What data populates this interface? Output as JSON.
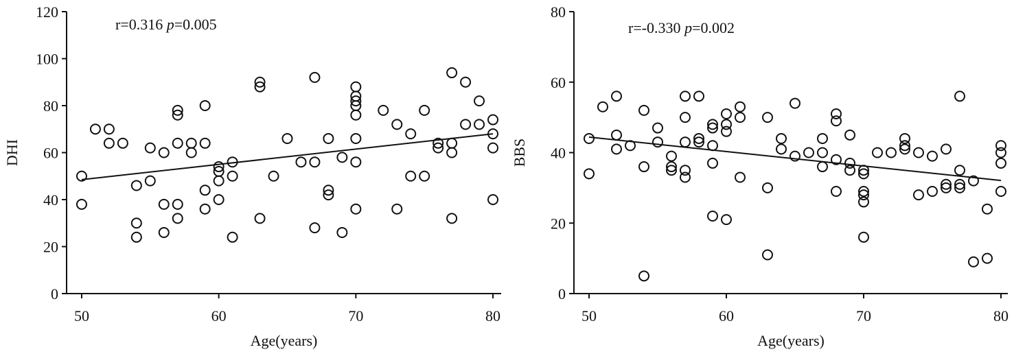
{
  "chart_data": [
    {
      "type": "scatter",
      "xlabel": "Age(years)",
      "ylabel": "DHI",
      "annotation": [
        "r=0.316 ",
        "p",
        "=0.005"
      ],
      "xlim": [
        48.9,
        80.6
      ],
      "ylim": [
        0,
        120
      ],
      "xticks": [
        50,
        60,
        70,
        80
      ],
      "yticks": [
        0,
        20,
        40,
        60,
        80,
        100,
        120
      ],
      "x": [
        50,
        50,
        51,
        52,
        52,
        53,
        54,
        54,
        54,
        55,
        55,
        56,
        56,
        56,
        57,
        57,
        57,
        57,
        57,
        58,
        58,
        59,
        59,
        59,
        59,
        60,
        60,
        60,
        60,
        61,
        61,
        61,
        63,
        63,
        63,
        64,
        65,
        66,
        67,
        67,
        67,
        68,
        68,
        68,
        69,
        69,
        70,
        70,
        70,
        70,
        70,
        70,
        70,
        70,
        72,
        73,
        73,
        74,
        74,
        75,
        75,
        76,
        76,
        77,
        77,
        77,
        77,
        78,
        78,
        79,
        79,
        80,
        80,
        80,
        80
      ],
      "values": [
        50,
        38,
        70,
        70,
        64,
        64,
        46,
        30,
        24,
        62,
        48,
        60,
        38,
        26,
        78,
        76,
        64,
        38,
        32,
        64,
        60,
        80,
        64,
        44,
        36,
        54,
        52,
        48,
        40,
        56,
        50,
        24,
        90,
        88,
        32,
        50,
        66,
        56,
        92,
        56,
        28,
        66,
        44,
        42,
        58,
        26,
        88,
        84,
        82,
        80,
        76,
        66,
        56,
        36,
        78,
        72,
        36,
        68,
        50,
        78,
        50,
        64,
        62,
        94,
        64,
        60,
        32,
        90,
        72,
        82,
        72,
        74,
        68,
        62,
        40
      ],
      "trend": {
        "x": [
          50,
          80
        ],
        "y": [
          48.5,
          68
        ]
      }
    },
    {
      "type": "scatter",
      "xlabel": "Age(years)",
      "ylabel": "BBS",
      "annotation": [
        "r=-0.330 ",
        "p",
        "=0.002"
      ],
      "xlim": [
        48.9,
        80.5
      ],
      "ylim": [
        0,
        80
      ],
      "xticks": [
        50,
        60,
        70,
        80
      ],
      "yticks": [
        0,
        20,
        40,
        60,
        80
      ],
      "x": [
        50,
        50,
        51,
        52,
        52,
        52,
        53,
        54,
        54,
        54,
        55,
        55,
        56,
        56,
        56,
        57,
        57,
        57,
        57,
        57,
        58,
        58,
        58,
        59,
        59,
        59,
        59,
        59,
        60,
        60,
        60,
        60,
        61,
        61,
        61,
        63,
        63,
        63,
        64,
        64,
        65,
        65,
        66,
        67,
        67,
        67,
        68,
        68,
        68,
        68,
        69,
        69,
        69,
        70,
        70,
        70,
        70,
        70,
        70,
        71,
        72,
        73,
        73,
        73,
        74,
        74,
        75,
        75,
        76,
        76,
        76,
        77,
        77,
        77,
        77,
        78,
        78,
        79,
        79,
        80,
        80,
        80,
        80
      ],
      "values": [
        44,
        34,
        53,
        56,
        45,
        41,
        42,
        52,
        36,
        5,
        47,
        43,
        39,
        36,
        35,
        56,
        50,
        43,
        35,
        33,
        56,
        44,
        43,
        48,
        47,
        42,
        37,
        22,
        51,
        48,
        46,
        21,
        53,
        50,
        33,
        50,
        30,
        11,
        44,
        41,
        54,
        39,
        40,
        44,
        40,
        36,
        51,
        49,
        38,
        29,
        45,
        37,
        35,
        35,
        34,
        29,
        28,
        26,
        16,
        40,
        40,
        44,
        42,
        41,
        40,
        28,
        39,
        29,
        41,
        31,
        30,
        56,
        35,
        31,
        30,
        32,
        9,
        24,
        10,
        42,
        40,
        37,
        29
      ],
      "trend": {
        "x": [
          50,
          80
        ],
        "y": [
          44.4,
          32.1
        ]
      }
    }
  ]
}
